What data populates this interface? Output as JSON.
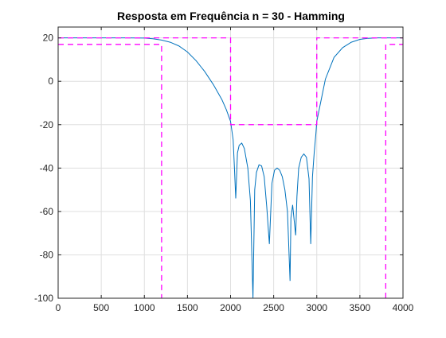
{
  "chart_data": {
    "type": "line",
    "title": "Resposta em Frequência n = 30 - Hamming",
    "xlabel": "",
    "ylabel": "",
    "xlim": [
      0,
      4000
    ],
    "ylim": [
      -100,
      25
    ],
    "grid": true,
    "xticks": [
      0,
      500,
      1000,
      1500,
      2000,
      2500,
      3000,
      3500,
      4000
    ],
    "yticks": [
      -100,
      -80,
      -60,
      -40,
      -20,
      0,
      20
    ],
    "colors": {
      "response": "#0072bd",
      "mask": "#ff00ff",
      "axes": "#262626",
      "grid": "#dfdfdf"
    },
    "series": [
      {
        "style": "solid",
        "color": "#0072bd",
        "x": [
          0,
          200,
          400,
          600,
          800,
          1000,
          1100,
          1200,
          1300,
          1400,
          1500,
          1600,
          1700,
          1800,
          1900,
          1950,
          2000,
          2030,
          2045,
          2060,
          2080,
          2100,
          2130,
          2160,
          2200,
          2230,
          2260,
          2280,
          2300,
          2330,
          2360,
          2390,
          2420,
          2450,
          2480,
          2510,
          2540,
          2570,
          2600,
          2630,
          2660,
          2690,
          2700,
          2720,
          2740,
          2755,
          2770,
          2790,
          2820,
          2850,
          2880,
          2910,
          2930,
          2950,
          2970,
          2990,
          3000,
          3100,
          3200,
          3300,
          3400,
          3500,
          3600,
          3700,
          3800,
          3900,
          4000
        ],
        "y": [
          20,
          20,
          20,
          20,
          20,
          19.9,
          19.6,
          19,
          18,
          16.3,
          13.5,
          9.5,
          4.5,
          -1.5,
          -8.5,
          -13,
          -18.5,
          -27,
          -40,
          -54,
          -33,
          -29.5,
          -28.5,
          -31,
          -40,
          -55,
          -100,
          -50,
          -42,
          -38.5,
          -39,
          -44,
          -58,
          -75,
          -47,
          -41,
          -40,
          -41,
          -44,
          -50,
          -60,
          -92,
          -63,
          -57,
          -65,
          -71,
          -53,
          -40,
          -35,
          -33.5,
          -35,
          -45,
          -75,
          -44,
          -33,
          -24,
          -18.5,
          1,
          11,
          15.5,
          18,
          19.3,
          19.8,
          20,
          20,
          20,
          20
        ]
      },
      {
        "style": "dashed",
        "color": "#ff00ff",
        "x": [
          0,
          1200,
          1200
        ],
        "y": [
          17,
          17,
          -100
        ]
      },
      {
        "style": "dashed",
        "color": "#ff00ff",
        "x": [
          0,
          2000,
          2000,
          3000,
          3000,
          4000
        ],
        "y": [
          20,
          20,
          -20,
          -20,
          20,
          20
        ]
      },
      {
        "style": "dashed",
        "color": "#ff00ff",
        "x": [
          3800,
          3800,
          4000
        ],
        "y": [
          -100,
          17,
          17
        ]
      }
    ]
  }
}
